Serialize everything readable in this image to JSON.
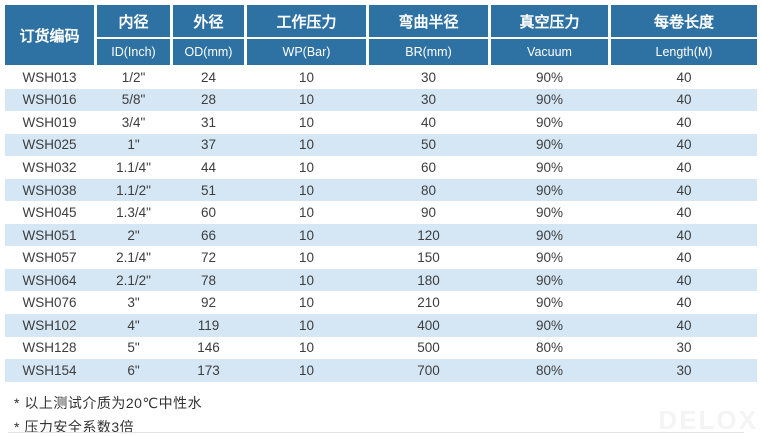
{
  "table": {
    "columns": [
      {
        "zh": "订货编码",
        "en": ""
      },
      {
        "zh": "内径",
        "en": "ID(Inch)"
      },
      {
        "zh": "外径",
        "en": "OD(mm)"
      },
      {
        "zh": "工作压力",
        "en": "WP(Bar)"
      },
      {
        "zh": "弯曲半径",
        "en": "BR(mm)"
      },
      {
        "zh": "真空压力",
        "en": "Vacuum"
      },
      {
        "zh": "每卷长度",
        "en": "Length(M)"
      }
    ],
    "rows": [
      [
        "WSH013",
        "1/2\"",
        "24",
        "10",
        "30",
        "90%",
        "40"
      ],
      [
        "WSH016",
        "5/8\"",
        "28",
        "10",
        "30",
        "90%",
        "40"
      ],
      [
        "WSH019",
        "3/4\"",
        "31",
        "10",
        "40",
        "90%",
        "40"
      ],
      [
        "WSH025",
        "1\"",
        "37",
        "10",
        "50",
        "90%",
        "40"
      ],
      [
        "WSH032",
        "1.1/4\"",
        "44",
        "10",
        "60",
        "90%",
        "40"
      ],
      [
        "WSH038",
        "1.1/2\"",
        "51",
        "10",
        "80",
        "90%",
        "40"
      ],
      [
        "WSH045",
        "1.3/4\"",
        "60",
        "10",
        "90",
        "90%",
        "40"
      ],
      [
        "WSH051",
        "2\"",
        "66",
        "10",
        "120",
        "90%",
        "40"
      ],
      [
        "WSH057",
        "2.1/4\"",
        "72",
        "10",
        "150",
        "90%",
        "40"
      ],
      [
        "WSH064",
        "2.1/2\"",
        "78",
        "10",
        "180",
        "90%",
        "40"
      ],
      [
        "WSH076",
        "3\"",
        "92",
        "10",
        "210",
        "90%",
        "40"
      ],
      [
        "WSH102",
        "4\"",
        "119",
        "10",
        "400",
        "90%",
        "40"
      ],
      [
        "WSH128",
        "5\"",
        "146",
        "10",
        "500",
        "80%",
        "30"
      ],
      [
        "WSH154",
        "6\"",
        "173",
        "10",
        "700",
        "80%",
        "30"
      ]
    ]
  },
  "footnotes": [
    "* 以上测试介质为20℃中性水",
    "* 压力安全系数3倍"
  ],
  "watermark": "DELOX",
  "colors": {
    "header_bg": "#2e71a3",
    "header_text": "#ffffff",
    "stripe_bg": "#d5e7f5",
    "body_text": "#3d3d3d"
  }
}
